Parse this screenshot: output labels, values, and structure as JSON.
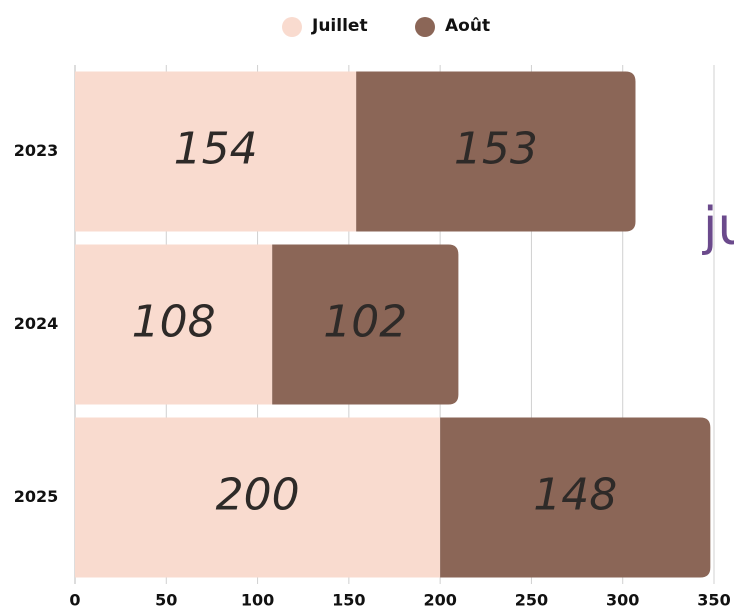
{
  "chart_data": {
    "type": "bar",
    "orientation": "horizontal",
    "stacked": true,
    "categories": [
      "2023",
      "2024",
      "2025"
    ],
    "series": [
      {
        "name": "Juillet",
        "color": "#f9dbcf",
        "values": [
          154,
          108,
          200
        ]
      },
      {
        "name": "Août",
        "color": "#8b6657",
        "values": [
          153,
          102,
          148
        ]
      }
    ],
    "xlim": [
      0,
      350
    ],
    "xticks": [
      0,
      50,
      100,
      150,
      200,
      250,
      300,
      350
    ],
    "grid": true,
    "legend": "top",
    "annotation": "ju"
  }
}
